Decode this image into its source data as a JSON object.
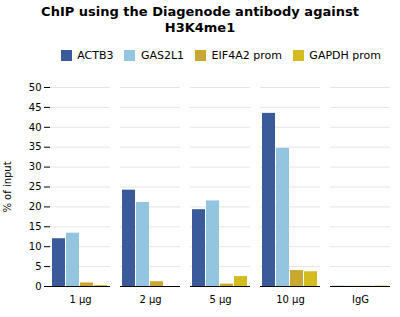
{
  "chart_data": {
    "type": "bar",
    "title": "ChIP using the Diagenode antibody against\nH3K4me1",
    "ylabel": "% of input",
    "categories": [
      "1 μg",
      "2 μg",
      "5 μg",
      "10 μg",
      "IgG"
    ],
    "series": [
      {
        "name": "ACTB3",
        "color": "#3a5a9a",
        "values": [
          12.0,
          24.2,
          19.3,
          43.5,
          0.05
        ]
      },
      {
        "name": "GAS2L1",
        "color": "#93c4e0",
        "values": [
          13.4,
          21.1,
          21.5,
          34.7,
          0.05
        ]
      },
      {
        "name": "EIF4A2 prom",
        "color": "#c8a830",
        "values": [
          0.9,
          1.2,
          0.6,
          4.0,
          0.05
        ]
      },
      {
        "name": "GAPDH prom",
        "color": "#d4bc20",
        "values": [
          0.25,
          0.0,
          2.5,
          3.7,
          0.1
        ]
      }
    ],
    "ylim": [
      0,
      50
    ],
    "yticks": [
      0,
      5,
      10,
      15,
      20,
      25,
      30,
      35,
      40,
      45,
      50
    ],
    "grid": true,
    "legend": "upper right"
  }
}
